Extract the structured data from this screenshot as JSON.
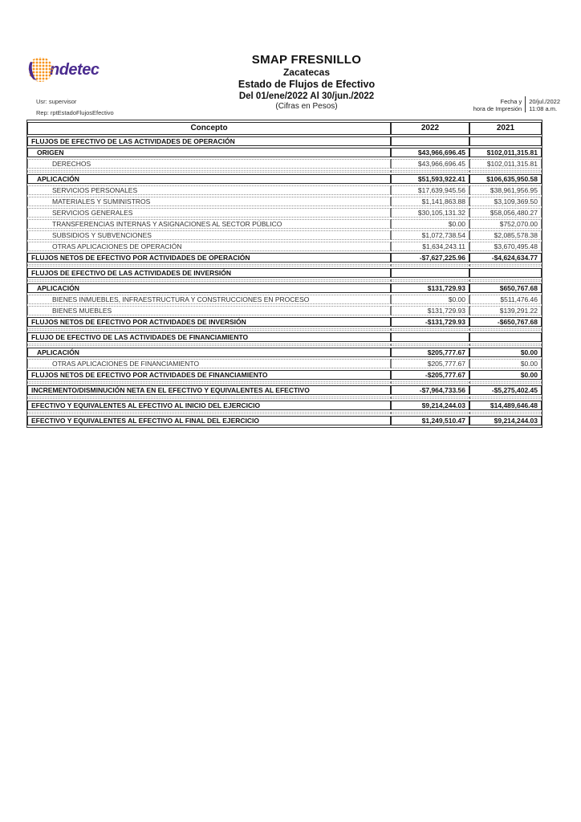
{
  "logo": {
    "name": "indetec",
    "wordmark": "ndetec",
    "dot_color": "#F7941D",
    "text_color": "#4B2C8F"
  },
  "title": {
    "entity": "SMAP FRESNILLO",
    "state": "Zacatecas",
    "report": "Estado de Flujos de Efectivo",
    "period": "Del 01/ene/2022 Al 30/jun./2022",
    "units": "(Cifras en Pesos)"
  },
  "meta": {
    "user": "Usr: supervisor",
    "report_id": "Rep: rptEstadoFlujosEfectivo"
  },
  "print": {
    "label_line1": "Fecha y",
    "label_line2": "hora de Impresión",
    "date": "20/jul./2022",
    "time": "11:08 a.m."
  },
  "table": {
    "columns": [
      "Concepto",
      "2022",
      "2021"
    ],
    "rows": [
      {
        "type": "section",
        "label": "FLUJOS DE EFECTIVO DE LAS ACTIVIDADES DE OPERACIÓN",
        "v2022": "",
        "v2021": ""
      },
      {
        "type": "bold",
        "label": "ORIGEN",
        "v2022": "$43,966,696.45",
        "v2021": "$102,011,315.81"
      },
      {
        "type": "item",
        "label": "DERECHOS",
        "v2022": "$43,966,696.45",
        "v2021": "$102,011,315.81"
      },
      {
        "type": "empty",
        "label": "",
        "v2022": "",
        "v2021": ""
      },
      {
        "type": "bold",
        "label": "APLICACIÓN",
        "v2022": "$51,593,922.41",
        "v2021": "$106,635,950.58"
      },
      {
        "type": "item",
        "label": "SERVICIOS PERSONALES",
        "v2022": "$17,639,945.56",
        "v2021": "$38,961,956.95"
      },
      {
        "type": "item",
        "label": "MATERIALES Y SUMINISTROS",
        "v2022": "$1,141,863.88",
        "v2021": "$3,109,369.50"
      },
      {
        "type": "item",
        "label": "SERVICIOS GENERALES",
        "v2022": "$30,105,131.32",
        "v2021": "$58,056,480.27"
      },
      {
        "type": "item",
        "label": "TRANSFERENCIAS INTERNAS Y ASIGNACIONES AL SECTOR PÚBLICO",
        "v2022": "$0.00",
        "v2021": "$752,070.00"
      },
      {
        "type": "item",
        "label": "SUBSIDIOS Y SUBVENCIONES",
        "v2022": "$1,072,738.54",
        "v2021": "$2,085,578.38"
      },
      {
        "type": "item",
        "label": "OTRAS APLICACIONES DE OPERACIÓN",
        "v2022": "$1,634,243.11",
        "v2021": "$3,670,495.48"
      },
      {
        "type": "total",
        "label": "FLUJOS NETOS DE EFECTIVO POR ACTIVIDADES DE OPERACIÓN",
        "v2022": "-$7,627,225.96",
        "v2021": "-$4,624,634.77"
      },
      {
        "type": "empty",
        "label": "",
        "v2022": "",
        "v2021": ""
      },
      {
        "type": "section",
        "label": "FLUJOS DE EFECTIVO DE LAS ACTIVIDADES DE INVERSIÓN",
        "v2022": "",
        "v2021": ""
      },
      {
        "type": "empty",
        "label": "",
        "v2022": "",
        "v2021": ""
      },
      {
        "type": "bold",
        "label": "APLICACIÓN",
        "v2022": "$131,729.93",
        "v2021": "$650,767.68"
      },
      {
        "type": "item",
        "label": "BIENES INMUEBLES, INFRAESTRUCTURA Y CONSTRUCCIONES EN PROCESO",
        "v2022": "$0.00",
        "v2021": "$511,476.46"
      },
      {
        "type": "item",
        "label": "BIENES MUEBLES",
        "v2022": "$131,729.93",
        "v2021": "$139,291.22"
      },
      {
        "type": "total",
        "label": "FLUJOS NETOS DE EFECTIVO POR ACTIVIDADES DE INVERSIÓN",
        "v2022": "-$131,729.93",
        "v2021": "-$650,767.68"
      },
      {
        "type": "empty",
        "label": "",
        "v2022": "",
        "v2021": ""
      },
      {
        "type": "section",
        "label": "FLUJO DE EFECTIVO DE LAS ACTIVIDADES DE FINANCIAMIENTO",
        "v2022": "",
        "v2021": ""
      },
      {
        "type": "empty",
        "label": "",
        "v2022": "",
        "v2021": ""
      },
      {
        "type": "bold",
        "label": "APLICACIÓN",
        "v2022": "$205,777.67",
        "v2021": "$0.00"
      },
      {
        "type": "item",
        "label": "OTRAS APLICACIONES DE FINANCIAMIENTO",
        "v2022": "$205,777.67",
        "v2021": "$0.00"
      },
      {
        "type": "total",
        "label": "FLUJOS NETOS DE EFECTIVO POR ACTIVIDADES DE FINANCIAMIENTO",
        "v2022": "-$205,777.67",
        "v2021": "$0.00"
      },
      {
        "type": "empty",
        "label": "",
        "v2022": "",
        "v2021": ""
      },
      {
        "type": "total",
        "label": "INCREMENTO/DISMINUCIÓN NETA EN EL EFECTIVO Y EQUIVALENTES AL EFECTIVO",
        "v2022": "-$7,964,733.56",
        "v2021": "-$5,275,402.45"
      },
      {
        "type": "empty",
        "label": "",
        "v2022": "",
        "v2021": ""
      },
      {
        "type": "total",
        "label": "EFECTIVO Y EQUIVALENTES AL EFECTIVO AL INICIO DEL EJERCICIO",
        "v2022": "$9,214,244.03",
        "v2021": "$14,489,646.48"
      },
      {
        "type": "empty",
        "label": "",
        "v2022": "",
        "v2021": ""
      },
      {
        "type": "total",
        "label": "EFECTIVO Y EQUIVALENTES AL EFECTIVO AL FINAL DEL EJERCICIO",
        "v2022": "$1,249,510.47",
        "v2021": "$9,214,244.03"
      }
    ]
  }
}
